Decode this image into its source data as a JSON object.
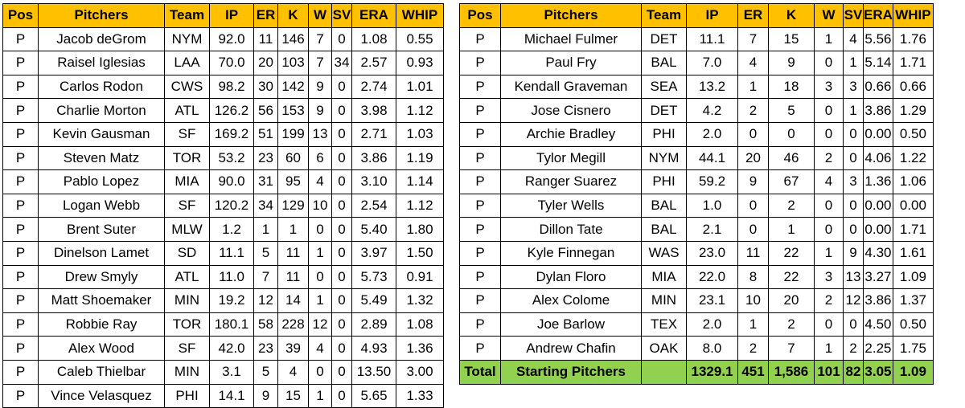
{
  "headers": {
    "pos": "Pos",
    "pitchers": "Pitchers",
    "team": "Team",
    "ip": "IP",
    "er": "ER",
    "k": "K",
    "w": "W",
    "sv": "SV",
    "era": "ERA",
    "whip": "WHIP"
  },
  "left_rows": [
    {
      "pos": "P",
      "name": "Jacob deGrom",
      "team": "NYM",
      "ip": "92.0",
      "er": "11",
      "k": "146",
      "w": "7",
      "sv": "0",
      "era": "1.08",
      "whip": "0.55"
    },
    {
      "pos": "P",
      "name": "Raisel Iglesias",
      "team": "LAA",
      "ip": "70.0",
      "er": "20",
      "k": "103",
      "w": "7",
      "sv": "34",
      "era": "2.57",
      "whip": "0.93"
    },
    {
      "pos": "P",
      "name": "Carlos Rodon",
      "team": "CWS",
      "ip": "98.2",
      "er": "30",
      "k": "142",
      "w": "9",
      "sv": "0",
      "era": "2.74",
      "whip": "1.01"
    },
    {
      "pos": "P",
      "name": "Charlie Morton",
      "team": "ATL",
      "ip": "126.2",
      "er": "56",
      "k": "153",
      "w": "9",
      "sv": "0",
      "era": "3.98",
      "whip": "1.12"
    },
    {
      "pos": "P",
      "name": "Kevin Gausman",
      "team": "SF",
      "ip": "169.2",
      "er": "51",
      "k": "199",
      "w": "13",
      "sv": "0",
      "era": "2.71",
      "whip": "1.03"
    },
    {
      "pos": "P",
      "name": "Steven Matz",
      "team": "TOR",
      "ip": "53.2",
      "er": "23",
      "k": "60",
      "w": "6",
      "sv": "0",
      "era": "3.86",
      "whip": "1.19"
    },
    {
      "pos": "P",
      "name": "Pablo Lopez",
      "team": "MIA",
      "ip": "90.0",
      "er": "31",
      "k": "95",
      "w": "4",
      "sv": "0",
      "era": "3.10",
      "whip": "1.14"
    },
    {
      "pos": "P",
      "name": "Logan Webb",
      "team": "SF",
      "ip": "120.2",
      "er": "34",
      "k": "129",
      "w": "10",
      "sv": "0",
      "era": "2.54",
      "whip": "1.12"
    },
    {
      "pos": "P",
      "name": "Brent Suter",
      "team": "MLW",
      "ip": "1.2",
      "er": "1",
      "k": "1",
      "w": "0",
      "sv": "0",
      "era": "5.40",
      "whip": "1.80"
    },
    {
      "pos": "P",
      "name": "Dinelson Lamet",
      "team": "SD",
      "ip": "11.1",
      "er": "5",
      "k": "11",
      "w": "1",
      "sv": "0",
      "era": "3.97",
      "whip": "1.50"
    },
    {
      "pos": "P",
      "name": "Drew Smyly",
      "team": "ATL",
      "ip": "11.0",
      "er": "7",
      "k": "11",
      "w": "0",
      "sv": "0",
      "era": "5.73",
      "whip": "0.91"
    },
    {
      "pos": "P",
      "name": "Matt Shoemaker",
      "team": "MIN",
      "ip": "19.2",
      "er": "12",
      "k": "14",
      "w": "1",
      "sv": "0",
      "era": "5.49",
      "whip": "1.32"
    },
    {
      "pos": "P",
      "name": "Robbie Ray",
      "team": "TOR",
      "ip": "180.1",
      "er": "58",
      "k": "228",
      "w": "12",
      "sv": "0",
      "era": "2.89",
      "whip": "1.08"
    },
    {
      "pos": "P",
      "name": "Alex Wood",
      "team": "SF",
      "ip": "42.0",
      "er": "23",
      "k": "39",
      "w": "4",
      "sv": "0",
      "era": "4.93",
      "whip": "1.36"
    },
    {
      "pos": "P",
      "name": "Caleb Thielbar",
      "team": "MIN",
      "ip": "3.1",
      "er": "5",
      "k": "4",
      "w": "0",
      "sv": "0",
      "era": "13.50",
      "whip": "3.00"
    },
    {
      "pos": "P",
      "name": "Vince Velasquez",
      "team": "PHI",
      "ip": "14.1",
      "er": "9",
      "k": "15",
      "w": "1",
      "sv": "0",
      "era": "5.65",
      "whip": "1.33"
    }
  ],
  "right_rows": [
    {
      "pos": "P",
      "name": "Michael Fulmer",
      "team": "DET",
      "ip": "11.1",
      "er": "7",
      "k": "15",
      "w": "1",
      "sv": "4",
      "era": "5.56",
      "whip": "1.76"
    },
    {
      "pos": "P",
      "name": "Paul Fry",
      "team": "BAL",
      "ip": "7.0",
      "er": "4",
      "k": "9",
      "w": "0",
      "sv": "1",
      "era": "5.14",
      "whip": "1.71"
    },
    {
      "pos": "P",
      "name": "Kendall Graveman",
      "team": "SEA",
      "ip": "13.2",
      "er": "1",
      "k": "18",
      "w": "3",
      "sv": "3",
      "era": "0.66",
      "whip": "0.66"
    },
    {
      "pos": "P",
      "name": "Jose Cisnero",
      "team": "DET",
      "ip": "4.2",
      "er": "2",
      "k": "5",
      "w": "0",
      "sv": "1",
      "era": "3.86",
      "whip": "1.29"
    },
    {
      "pos": "P",
      "name": "Archie Bradley",
      "team": "PHI",
      "ip": "2.0",
      "er": "0",
      "k": "0",
      "w": "0",
      "sv": "0",
      "era": "0.00",
      "whip": "0.50"
    },
    {
      "pos": "P",
      "name": "Tylor Megill",
      "team": "NYM",
      "ip": "44.1",
      "er": "20",
      "k": "46",
      "w": "2",
      "sv": "0",
      "era": "4.06",
      "whip": "1.22"
    },
    {
      "pos": "P",
      "name": "Ranger Suarez",
      "team": "PHI",
      "ip": "59.2",
      "er": "9",
      "k": "67",
      "w": "4",
      "sv": "3",
      "era": "1.36",
      "whip": "1.06"
    },
    {
      "pos": "P",
      "name": "Tyler Wells",
      "team": "BAL",
      "ip": "1.0",
      "er": "0",
      "k": "2",
      "w": "0",
      "sv": "0",
      "era": "0.00",
      "whip": "0.00"
    },
    {
      "pos": "P",
      "name": "Dillon Tate",
      "team": "BAL",
      "ip": "2.1",
      "er": "0",
      "k": "1",
      "w": "0",
      "sv": "0",
      "era": "0.00",
      "whip": "1.71"
    },
    {
      "pos": "P",
      "name": "Kyle Finnegan",
      "team": "WAS",
      "ip": "23.0",
      "er": "11",
      "k": "22",
      "w": "1",
      "sv": "9",
      "era": "4.30",
      "whip": "1.61"
    },
    {
      "pos": "P",
      "name": "Dylan Floro",
      "team": "MIA",
      "ip": "22.0",
      "er": "8",
      "k": "22",
      "w": "3",
      "sv": "13",
      "era": "3.27",
      "whip": "1.09"
    },
    {
      "pos": "P",
      "name": "Alex Colome",
      "team": "MIN",
      "ip": "23.1",
      "er": "10",
      "k": "20",
      "w": "2",
      "sv": "12",
      "era": "3.86",
      "whip": "1.37"
    },
    {
      "pos": "P",
      "name": "Joe Barlow",
      "team": "TEX",
      "ip": "2.0",
      "er": "1",
      "k": "2",
      "w": "0",
      "sv": "0",
      "era": "4.50",
      "whip": "0.50"
    },
    {
      "pos": "P",
      "name": "Andrew Chafin",
      "team": "OAK",
      "ip": "8.0",
      "er": "2",
      "k": "7",
      "w": "1",
      "sv": "2",
      "era": "2.25",
      "whip": "1.75"
    }
  ],
  "total_row": {
    "pos": "Total",
    "name": "Starting Pitchers",
    "team": "",
    "ip": "1329.1",
    "er": "451",
    "k": "1,586",
    "w": "101",
    "sv": "82",
    "era": "3.05",
    "whip": "1.09"
  },
  "colors": {
    "header_bg": "#ffc000",
    "total_bg": "#92d050",
    "border": "#000000"
  }
}
